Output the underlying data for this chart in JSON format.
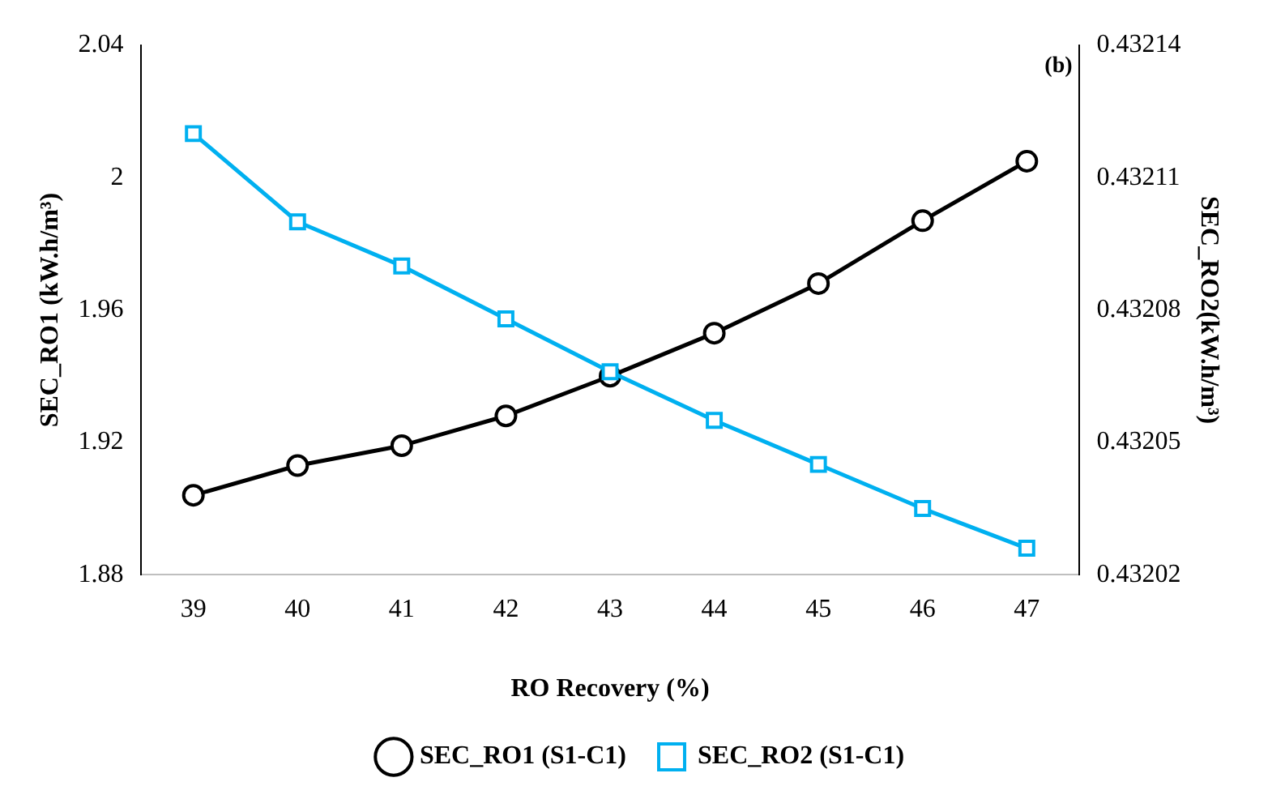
{
  "chart_data": {
    "type": "line",
    "xlabel": "RO Recovery (%)",
    "ylabel": "SEC_RO1 (kW.h/m³)",
    "y2label": "SEC_RO2(kW.h/m³)",
    "categories": [
      "39",
      "40",
      "41",
      "42",
      "43",
      "44",
      "45",
      "46",
      "47"
    ],
    "series": [
      {
        "name": "SEC_RO1 (S1-C1)",
        "color": "#000000",
        "marker": "circle",
        "values": [
          1.904,
          1.913,
          1.919,
          1.928,
          1.94,
          1.953,
          1.968,
          1.987,
          2.005
        ]
      },
      {
        "name": "SEC_RO2 (S1-C1)",
        "color": "#00b0f0",
        "marker": "square",
        "axis": "y2",
        "values": [
          0.43212,
          0.4321,
          0.43209,
          0.432078,
          0.432066,
          0.432055,
          0.432045,
          0.432035,
          0.432026
        ]
      }
    ],
    "ylim": [
      1.88,
      2.04
    ],
    "yticks": [
      1.88,
      1.92,
      1.96,
      2,
      2.04
    ],
    "y2lim": [
      0.43202,
      0.43214
    ],
    "y2ticks": [
      0.43202,
      0.43205,
      0.43208,
      0.43211,
      0.43214
    ],
    "annotations": [
      "(b)"
    ],
    "legend": "bottom",
    "grid": false
  }
}
